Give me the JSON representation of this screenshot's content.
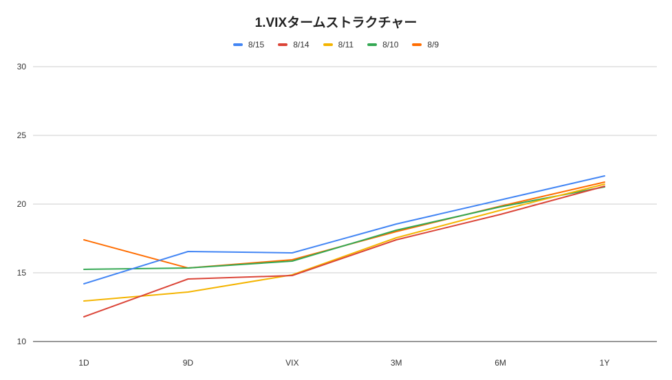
{
  "chart_data": {
    "type": "line",
    "title": "1.VIXタームストラクチャー",
    "xlabel": "",
    "ylabel": "",
    "categories": [
      "1D",
      "9D",
      "VIX",
      "3M",
      "6M",
      "1Y"
    ],
    "ylim": [
      10,
      30
    ],
    "yticks": [
      10,
      15,
      20,
      25,
      30
    ],
    "grid": true,
    "legend_position": "top",
    "series": [
      {
        "name": "8/15",
        "color": "#4285f4",
        "values": [
          14.2,
          16.55,
          16.45,
          18.55,
          20.3,
          22.05
        ]
      },
      {
        "name": "8/14",
        "color": "#db4437",
        "values": [
          11.8,
          14.55,
          14.8,
          17.4,
          19.25,
          21.3
        ]
      },
      {
        "name": "8/11",
        "color": "#f4b400",
        "values": [
          12.95,
          13.6,
          14.85,
          17.55,
          19.55,
          21.45
        ]
      },
      {
        "name": "8/10",
        "color": "#34a853",
        "values": [
          15.25,
          15.35,
          15.85,
          18.1,
          19.8,
          21.25
        ]
      },
      {
        "name": "8/9",
        "color": "#ff6d01",
        "values": [
          17.4,
          15.35,
          15.95,
          18.0,
          19.85,
          21.6
        ]
      }
    ]
  }
}
